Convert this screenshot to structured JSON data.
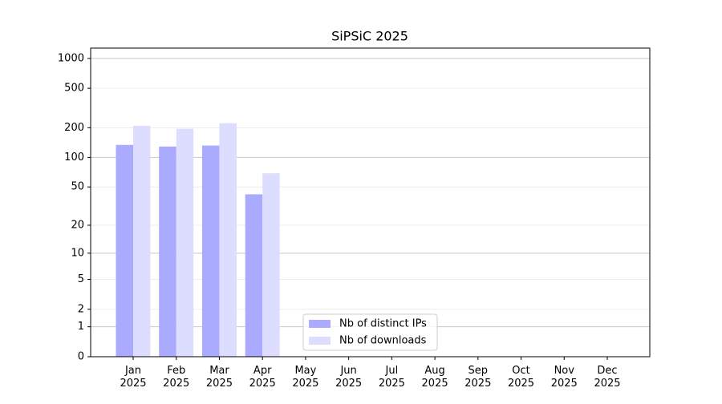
{
  "chart_data": {
    "type": "bar",
    "title": "SiPSiC 2025",
    "categories": [
      "Jan 2025",
      "Feb 2025",
      "Mar 2025",
      "Apr 2025",
      "May 2025",
      "Jun 2025",
      "Jul 2025",
      "Aug 2025",
      "Sep 2025",
      "Oct 2025",
      "Nov 2025",
      "Dec 2025"
    ],
    "series": [
      {
        "name": "Nb of distinct IPs",
        "color": "#aaaaff",
        "values": [
          134,
          129,
          132,
          42,
          null,
          null,
          null,
          null,
          null,
          null,
          null,
          null
        ]
      },
      {
        "name": "Nb of downloads",
        "color": "#ddddff",
        "values": [
          209,
          195,
          222,
          69,
          null,
          null,
          null,
          null,
          null,
          null,
          null,
          null
        ]
      }
    ],
    "y_scale": "symlog",
    "ylim": [
      0,
      1270
    ],
    "yticks": [
      0,
      1,
      2,
      5,
      10,
      20,
      50,
      100,
      200,
      500,
      1000
    ],
    "grid": true,
    "legend": "lower center"
  }
}
